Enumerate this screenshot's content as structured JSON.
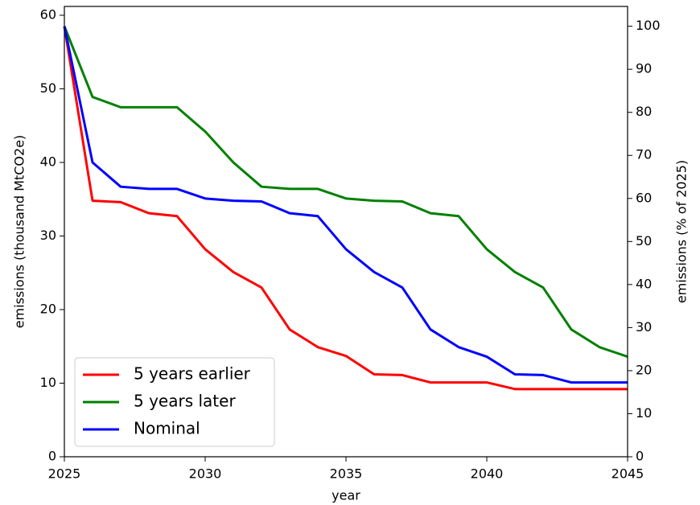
{
  "chart_data": {
    "type": "line",
    "xlabel": "year",
    "ylabel": "emissions (thousand MtCO2e)",
    "y2label": "emissions (% of 2025)",
    "x": [
      2025,
      2026,
      2027,
      2028,
      2029,
      2030,
      2031,
      2032,
      2033,
      2034,
      2035,
      2036,
      2037,
      2038,
      2039,
      2040,
      2041,
      2042,
      2043,
      2044,
      2045
    ],
    "series": [
      {
        "name": "5 years earlier",
        "color": "#ff0000",
        "values": [
          58.5,
          34.8,
          34.6,
          33.1,
          32.7,
          28.2,
          25.1,
          23.0,
          17.3,
          14.9,
          13.7,
          11.2,
          11.1,
          10.1,
          10.1,
          10.1,
          9.2,
          9.2,
          9.2,
          9.2,
          9.2
        ]
      },
      {
        "name": "5 years later",
        "color": "#008000",
        "values": [
          58.5,
          48.9,
          47.5,
          47.5,
          47.5,
          44.2,
          40.0,
          36.7,
          36.4,
          36.4,
          35.1,
          34.8,
          34.7,
          33.1,
          32.7,
          28.2,
          25.1,
          23.0,
          17.3,
          14.9,
          13.6
        ]
      },
      {
        "name": "Nominal",
        "color": "#0000ff",
        "values": [
          58.5,
          40.0,
          36.7,
          36.4,
          36.4,
          35.1,
          34.8,
          34.7,
          33.1,
          32.7,
          28.2,
          25.1,
          23.0,
          17.3,
          14.9,
          13.6,
          11.2,
          11.1,
          10.1,
          10.1,
          10.1
        ]
      }
    ],
    "xlim": [
      2025,
      2045
    ],
    "xticks": [
      2025,
      2030,
      2035,
      2040,
      2045
    ],
    "ylim": [
      0,
      61.2
    ],
    "yticks": [
      0,
      10,
      20,
      30,
      40,
      50,
      60
    ],
    "y2lim": [
      0,
      104.6
    ],
    "y2ticks": [
      0,
      10,
      20,
      30,
      40,
      50,
      60,
      70,
      80,
      90,
      100
    ],
    "legend": "lower left",
    "grid": false
  }
}
